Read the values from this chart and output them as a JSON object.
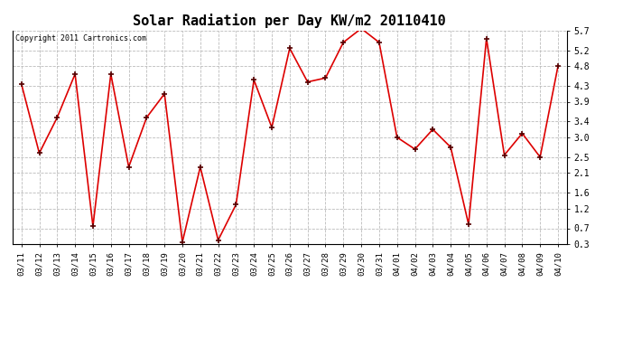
{
  "title": "Solar Radiation per Day KW/m2 20110410",
  "copyright": "Copyright 2011 Cartronics.com",
  "dates": [
    "03/11",
    "03/12",
    "03/13",
    "03/14",
    "03/15",
    "03/16",
    "03/17",
    "03/18",
    "03/19",
    "03/20",
    "03/21",
    "03/22",
    "03/23",
    "03/24",
    "03/25",
    "03/26",
    "03/27",
    "03/28",
    "03/29",
    "03/30",
    "03/31",
    "04/01",
    "04/02",
    "04/03",
    "04/04",
    "04/05",
    "04/06",
    "04/07",
    "04/08",
    "04/09",
    "04/10"
  ],
  "values": [
    4.35,
    2.6,
    3.5,
    4.6,
    0.75,
    4.6,
    2.25,
    3.5,
    4.1,
    0.35,
    2.25,
    0.4,
    1.3,
    4.45,
    3.25,
    5.25,
    4.4,
    4.5,
    5.4,
    5.75,
    5.4,
    3.0,
    2.7,
    3.2,
    2.75,
    0.8,
    5.5,
    2.55,
    3.1,
    2.5,
    4.8
  ],
  "line_color": "#dd0000",
  "marker": "+",
  "marker_color": "#550000",
  "bg_color": "#ffffff",
  "plot_bg_color": "#ffffff",
  "grid_color": "#bbbbbb",
  "ylim_min": 0.3,
  "ylim_max": 5.7,
  "yticks": [
    0.3,
    0.7,
    1.2,
    1.6,
    2.1,
    2.5,
    3.0,
    3.4,
    3.9,
    4.3,
    4.8,
    5.2,
    5.7
  ],
  "title_fontsize": 11,
  "copyright_fontsize": 6,
  "tick_fontsize": 6.5,
  "ytick_fontsize": 7
}
